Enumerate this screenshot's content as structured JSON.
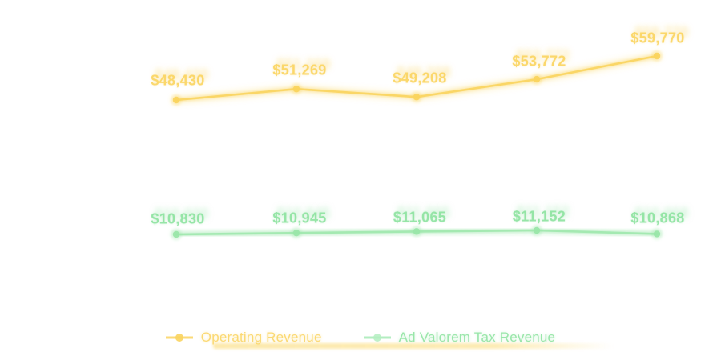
{
  "colors": {
    "operating_revenue": "#FAD45E",
    "ad_valorem": "#9AE6A9",
    "background": "#FFFFFF"
  },
  "legend": {
    "items": [
      {
        "label": "Operating Revenue",
        "color": "#FAD45E"
      },
      {
        "label": "Ad Valorem Tax Revenue",
        "color": "#9AE6A9"
      }
    ],
    "position": "bottom"
  },
  "chart_data": {
    "type": "line",
    "categories": [
      "",
      "",
      "",
      "",
      ""
    ],
    "series": [
      {
        "name": "Operating Revenue",
        "color": "#FAD45E",
        "values": [
          48430,
          51269,
          49208,
          53772,
          59770
        ],
        "point_labels": [
          "$48,430",
          "$51,269",
          "$49,208",
          "$53,772",
          "$59,770"
        ]
      },
      {
        "name": "Ad Valorem Tax Revenue",
        "color": "#9AE6A9",
        "values": [
          10830,
          10945,
          11065,
          11152,
          10868
        ],
        "point_labels": [
          "$10,830",
          "$10,945",
          "$11,065",
          "$11,152",
          "$10,868"
        ]
      }
    ],
    "title": "",
    "xlabel": "",
    "ylabel": "",
    "axes_visible": false,
    "grid": false,
    "data_labels_visible": true,
    "legend_position": "bottom"
  }
}
